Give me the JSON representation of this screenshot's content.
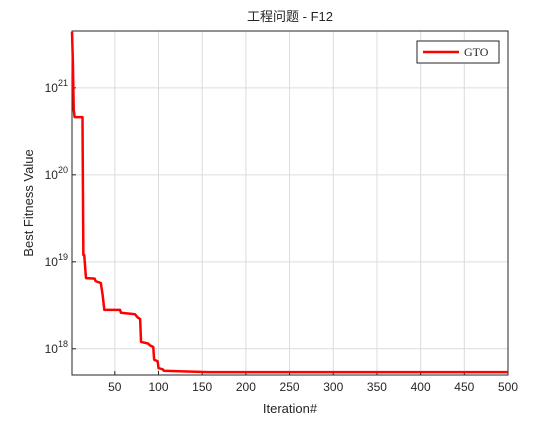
{
  "chart_data": {
    "type": "line",
    "title": "工程问题 - F12",
    "xlabel": "Iteration#",
    "ylabel": "Best Fitness Value",
    "x": [
      1,
      2,
      3,
      4,
      13,
      14,
      15,
      17,
      27,
      28,
      34,
      36,
      38,
      56,
      57,
      73,
      76,
      79,
      80,
      88,
      90,
      94,
      95,
      99,
      100,
      105,
      106,
      128,
      157,
      500
    ],
    "series": [
      {
        "name": "GTO",
        "color": "#ff0000",
        "values": [
          4.4e+21,
          2e+21,
          5.6e+20,
          4.6e+20,
          4.6e+20,
          1.2e+19,
          1.2e+19,
          6.5e+18,
          6.4e+18,
          6e+18,
          5.7e+18,
          4.2e+18,
          2.8e+18,
          2.8e+18,
          2.6e+18,
          2.5e+18,
          2.3e+18,
          2.2e+18,
          1.2e+18,
          1.15e+18,
          1.1e+18,
          1.05e+18,
          7.5e+17,
          7.2e+17,
          6e+17,
          5.8e+17,
          5.6e+17,
          5.5e+17,
          5.4e+17,
          5.4e+17
        ]
      }
    ],
    "xlim": [
      1,
      500
    ],
    "xticks": [
      50,
      100,
      150,
      200,
      250,
      300,
      350,
      400,
      450,
      500
    ],
    "ylim": [
      5e+17,
      4.5e+21
    ],
    "ylog": true,
    "yticks": [
      {
        "value": 1e+18,
        "label": "10^18"
      },
      {
        "value": 1e+19,
        "label": "10^19"
      },
      {
        "value": 1e+20,
        "label": "10^20"
      },
      {
        "value": 1e+21,
        "label": "10^21"
      }
    ],
    "grid": true,
    "legend_loc": "upper right"
  }
}
